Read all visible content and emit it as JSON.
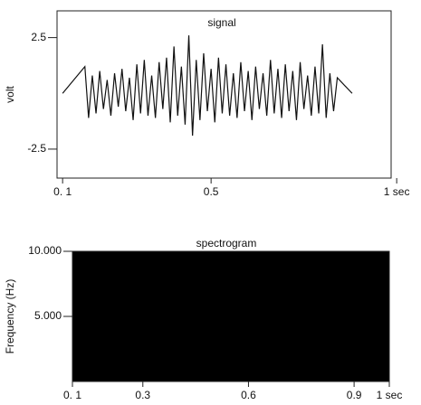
{
  "chart_data": [
    {
      "type": "line",
      "title": "signal",
      "y_label": "volt",
      "color": "#111111",
      "x": [
        0.1,
        0.16,
        0.17,
        0.18,
        0.19,
        0.2,
        0.21,
        0.22,
        0.23,
        0.24,
        0.25,
        0.26,
        0.27,
        0.28,
        0.29,
        0.3,
        0.31,
        0.32,
        0.33,
        0.34,
        0.35,
        0.36,
        0.37,
        0.38,
        0.39,
        0.4,
        0.41,
        0.42,
        0.43,
        0.44,
        0.45,
        0.46,
        0.47,
        0.48,
        0.49,
        0.5,
        0.51,
        0.52,
        0.53,
        0.54,
        0.55,
        0.56,
        0.57,
        0.58,
        0.59,
        0.6,
        0.61,
        0.62,
        0.63,
        0.64,
        0.65,
        0.66,
        0.67,
        0.68,
        0.69,
        0.7,
        0.71,
        0.72,
        0.73,
        0.74,
        0.75,
        0.76,
        0.77,
        0.78,
        0.79,
        0.8,
        0.81,
        0.82,
        0.83,
        0.84,
        0.88
      ],
      "values": [
        0,
        1.2,
        -1.1,
        0.8,
        -0.9,
        1.0,
        -0.7,
        0.6,
        -1.0,
        0.9,
        -0.6,
        1.1,
        -0.8,
        0.7,
        -1.2,
        1.3,
        -0.9,
        1.5,
        -1.0,
        0.8,
        -1.1,
        1.4,
        -0.7,
        1.6,
        -1.3,
        2.1,
        -1.0,
        1.2,
        -1.4,
        2.6,
        -1.9,
        1.5,
        -1.2,
        1.8,
        -0.8,
        1.1,
        -1.3,
        1.6,
        -0.9,
        1.3,
        -1.0,
        0.9,
        -1.1,
        1.4,
        -0.8,
        1.0,
        -1.2,
        1.2,
        -0.7,
        0.9,
        -1.0,
        1.5,
        -0.9,
        1.1,
        -1.1,
        1.3,
        -0.8,
        1.0,
        -1.2,
        1.4,
        -0.7,
        0.8,
        -1.0,
        1.2,
        -0.9,
        2.2,
        -1.1,
        0.9,
        -0.8,
        0.7,
        0
      ],
      "xlim": [
        0.085,
        0.985
      ],
      "ylim": [
        -3.8,
        3.7
      ],
      "xticks": [
        {
          "value": 0.1,
          "label": "0. 1"
        },
        0.5,
        {
          "value": 1,
          "label": "1 sec"
        }
      ],
      "yticks": [
        {
          "value": 2.5,
          "label": "2.5"
        },
        {
          "value": -2.5,
          "label": "-2.5"
        }
      ]
    },
    {
      "type": "spectrogram",
      "title": "spectrogram",
      "y_label": "Frequency (Hz)",
      "color": "#000000",
      "xlim": [
        0.1,
        1
      ],
      "ylim": [
        0,
        10000
      ],
      "xticks": [
        {
          "value": 0.1,
          "label": "0. 1"
        },
        0.3,
        0.6,
        0.9,
        {
          "value": 1,
          "label": "1 sec"
        }
      ],
      "yticks": [
        {
          "value": 10000,
          "label": "10.000"
        },
        {
          "value": 5000,
          "label": "5.000"
        }
      ]
    }
  ]
}
